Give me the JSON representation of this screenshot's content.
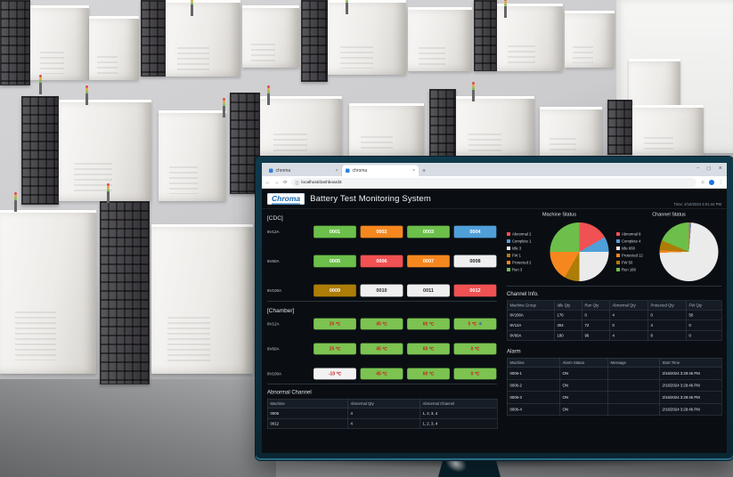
{
  "browser": {
    "tabs": [
      {
        "title": "chroma"
      },
      {
        "title": "chroma"
      }
    ],
    "url": "localhost/dashboard3",
    "icons": {
      "back": "←",
      "forward": "→",
      "reload": "⟳",
      "site_info": "ⓘ",
      "bookmark": "☆",
      "menu": "⋮",
      "new_tab": "+",
      "minimize": "–",
      "maximize": "▢",
      "close": "✕",
      "tab_close": "×"
    }
  },
  "header": {
    "logo_text": "Chroma",
    "title": "Battery Test Monitoring System",
    "time": "Time: 2/16/2024 4:01:44 PM"
  },
  "colors": {
    "run": "#6cbf4a",
    "complete": "#4f9fd9",
    "abnormal": "#f05152",
    "protected": "#f6871f",
    "fw": "#ad7d08",
    "idle": "#efefef"
  },
  "cdc": {
    "section_label": "[CDC]",
    "rows": [
      {
        "machine": "8V12A",
        "buttons": [
          {
            "label": "0001",
            "status": "run"
          },
          {
            "label": "0002",
            "status": "protected"
          },
          {
            "label": "0003",
            "status": "run"
          },
          {
            "label": "0004",
            "status": "complete"
          }
        ]
      },
      {
        "machine": "8V60A",
        "buttons": [
          {
            "label": "0005",
            "status": "run"
          },
          {
            "label": "0006",
            "status": "abnormal"
          },
          {
            "label": "0007",
            "status": "protected"
          },
          {
            "label": "0008",
            "status": "idle"
          }
        ]
      },
      {
        "machine": "8V100A",
        "buttons": [
          {
            "label": "0009",
            "status": "fw"
          },
          {
            "label": "0010",
            "status": "idle"
          },
          {
            "label": "0011",
            "status": "idle"
          },
          {
            "label": "0012",
            "status": "abnormal"
          }
        ]
      }
    ]
  },
  "chamber": {
    "section_label": "[Chamber]",
    "rows": [
      {
        "machine": "8V12A",
        "buttons": [
          {
            "label": "25 ℃",
            "variant": "green"
          },
          {
            "label": "45 ℃",
            "variant": "green"
          },
          {
            "label": "60 ℃",
            "variant": "green"
          },
          {
            "label": "5 ℃",
            "variant": "green",
            "cold": true
          }
        ]
      },
      {
        "machine": "8V60A",
        "buttons": [
          {
            "label": "25 ℃",
            "variant": "green"
          },
          {
            "label": "45 ℃",
            "variant": "green"
          },
          {
            "label": "60 ℃",
            "variant": "green"
          },
          {
            "label": "0 ℃",
            "variant": "green"
          }
        ]
      },
      {
        "machine": "8V100A",
        "buttons": [
          {
            "label": "-10 ℃",
            "variant": "white"
          },
          {
            "label": "45 ℃",
            "variant": "green"
          },
          {
            "label": "60 ℃",
            "variant": "green"
          },
          {
            "label": "0 ℃",
            "variant": "green"
          }
        ]
      }
    ]
  },
  "chart_data": [
    {
      "type": "pie",
      "title": "Machine Status",
      "legend_position": "left",
      "segments": [
        {
          "label": "Abnormal",
          "value": 2,
          "color": "#f05152"
        },
        {
          "label": "Complete",
          "value": 1,
          "color": "#4f9fd9"
        },
        {
          "label": "Idle",
          "value": 3,
          "color": "#ebebeb"
        },
        {
          "label": "FW",
          "value": 1,
          "color": "#ad7d08"
        },
        {
          "label": "Protected",
          "value": 2,
          "color": "#f6871f"
        },
        {
          "label": "Run",
          "value": 3,
          "color": "#6cbf4a"
        }
      ]
    },
    {
      "type": "pie",
      "title": "Channel Status",
      "legend_position": "left",
      "segments": [
        {
          "label": "Abnormal",
          "value": 8,
          "color": "#f05152"
        },
        {
          "label": "Complete",
          "value": 4,
          "color": "#4f9fd9"
        },
        {
          "label": "Idle",
          "value": 660,
          "color": "#ebebeb"
        },
        {
          "label": "Protected",
          "value": 12,
          "color": "#f6871f"
        },
        {
          "label": "FW",
          "value": 50,
          "color": "#ad7d08"
        },
        {
          "label": "Run",
          "value": 168,
          "color": "#6cbf4a"
        }
      ]
    }
  ],
  "channel_info": {
    "title": "Channel Info.",
    "headers": [
      "Machine Group",
      "Idle Qty",
      "Run Qty",
      "Abnormal Qty",
      "Protected Qty",
      "FW Qty"
    ],
    "rows": [
      [
        "8V100A",
        "176",
        "0",
        "4",
        "0",
        "50"
      ],
      [
        "8V12A",
        "304",
        "72",
        "0",
        "4",
        "0"
      ],
      [
        "8V60A",
        "180",
        "96",
        "4",
        "8",
        "0"
      ]
    ]
  },
  "abnormal_channel": {
    "title": "Abnormal Channel",
    "headers": [
      "Machine",
      "Abnormal Qty",
      "Abnormal Channel"
    ],
    "rows": [
      [
        "0006",
        "4",
        "1, 2, 3, 4"
      ],
      [
        "0012",
        "4",
        "1, 2, 3, 4"
      ]
    ]
  },
  "alarm": {
    "title": "Alarm",
    "headers": [
      "Machine",
      "Alarm Status",
      "Message",
      "Start Time"
    ],
    "rows": [
      [
        "0006-1",
        "ON",
        "",
        "2/16/2024 3:29:46 PM"
      ],
      [
        "0006-2",
        "ON",
        "",
        "2/16/2024 3:29:46 PM"
      ],
      [
        "0006-3",
        "ON",
        "",
        "2/16/2024 3:29:46 PM"
      ],
      [
        "0006-4",
        "ON",
        "",
        "2/16/2024 3:29:46 PM"
      ]
    ]
  }
}
